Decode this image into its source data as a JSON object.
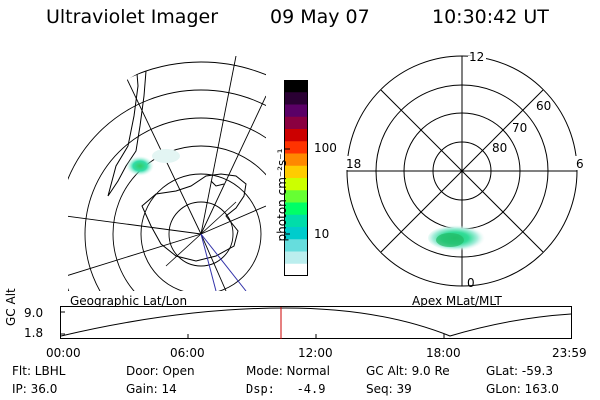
{
  "header": {
    "title": "Ultraviolet Imager",
    "date": "09 May 07",
    "time": "10:30:42 UT"
  },
  "geo_panel": {
    "label": "Geographic Lat/Lon"
  },
  "colorbar": {
    "unit_label": "photon cm⁻²s⁻¹",
    "ticks": [
      "100",
      "10"
    ],
    "colors": [
      "#000000",
      "#2a0033",
      "#5a0066",
      "#8a0040",
      "#cc0000",
      "#ff3300",
      "#ff8800",
      "#ffcc00",
      "#ccff00",
      "#66ff33",
      "#00ff66",
      "#00ddaa",
      "#00cccc",
      "#66dddd",
      "#bbeeee",
      "#ffffff"
    ]
  },
  "polar_panel": {
    "label": "Apex MLat/MLT",
    "mlt_labels": {
      "top": "12",
      "bottom": "0",
      "left": "18",
      "right": "6"
    },
    "lat_labels": [
      "60",
      "70",
      "80"
    ]
  },
  "altitude_strip": {
    "ylabel": "GC Alt",
    "y_ticks": [
      "9.0",
      "1.8"
    ],
    "x_ticks": [
      "00:00",
      "06:00",
      "12:00",
      "18:00",
      "23:59"
    ],
    "current_time_marker_color": "#cc0000"
  },
  "status": {
    "row1": {
      "filter": "Flt: LBHL",
      "door": "Door: Open",
      "mode": "Mode: Normal",
      "gc_alt": "GC Alt: 9.0 Re",
      "glat": "GLat: -59.3"
    },
    "row2": {
      "ip": "IP: 36.0",
      "gain": "Gain: 14",
      "dsp": "Dsp:   -4.9",
      "seq": "Seq: 39",
      "glon": "GLon: 163.0"
    }
  }
}
